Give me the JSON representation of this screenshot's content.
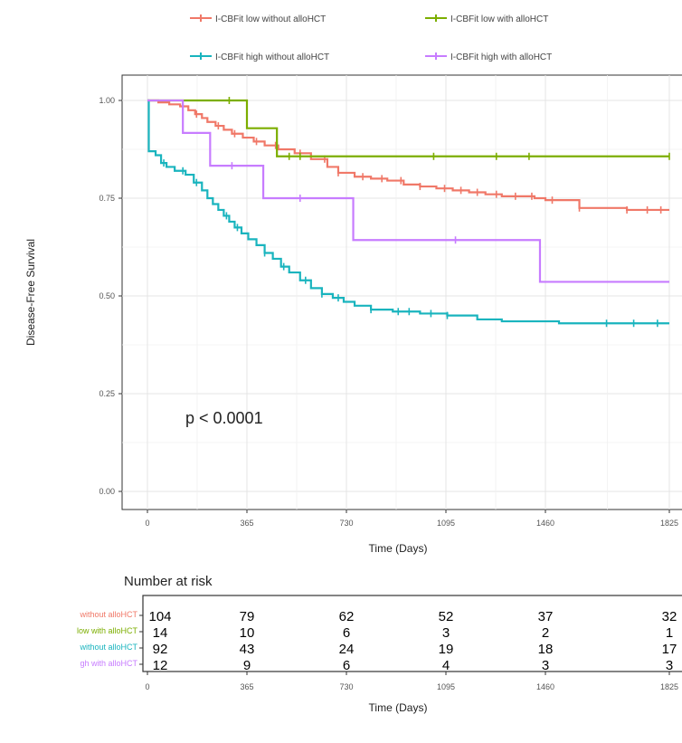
{
  "chart_data": {
    "type": "line",
    "subtype": "kaplan-meier",
    "ylabel": "Disease-Free Survival",
    "xlabel": "Time (Days)",
    "annotation": "p < 0.0001",
    "xlim": [
      0,
      1825
    ],
    "ylim": [
      0,
      1
    ],
    "x_ticks": [
      0,
      365,
      730,
      1095,
      1460,
      1825
    ],
    "x_tick_labels": [
      "0",
      "365",
      "730",
      "1095",
      "1460",
      "1825"
    ],
    "y_ticks": [
      0,
      0.25,
      0.5,
      0.75,
      1.0
    ],
    "y_tick_labels": [
      "0.00",
      "0.25",
      "0.50",
      "0.75",
      "1.00"
    ],
    "grid": true,
    "legend_position": "top",
    "series": [
      {
        "name": "I-CBFit low without alloHCT",
        "color": "#f07868",
        "steps": [
          [
            0,
            1.0
          ],
          [
            40,
            0.995
          ],
          [
            80,
            0.99
          ],
          [
            120,
            0.985
          ],
          [
            150,
            0.975
          ],
          [
            175,
            0.965
          ],
          [
            200,
            0.955
          ],
          [
            220,
            0.945
          ],
          [
            250,
            0.935
          ],
          [
            280,
            0.925
          ],
          [
            310,
            0.915
          ],
          [
            350,
            0.905
          ],
          [
            390,
            0.895
          ],
          [
            430,
            0.885
          ],
          [
            480,
            0.875
          ],
          [
            540,
            0.865
          ],
          [
            600,
            0.85
          ],
          [
            660,
            0.83
          ],
          [
            700,
            0.815
          ],
          [
            760,
            0.805
          ],
          [
            820,
            0.8
          ],
          [
            880,
            0.795
          ],
          [
            940,
            0.785
          ],
          [
            1000,
            0.78
          ],
          [
            1060,
            0.775
          ],
          [
            1120,
            0.77
          ],
          [
            1180,
            0.765
          ],
          [
            1240,
            0.76
          ],
          [
            1300,
            0.755
          ],
          [
            1420,
            0.75
          ],
          [
            1460,
            0.745
          ],
          [
            1560,
            0.725
          ],
          [
            1700,
            0.72
          ],
          [
            1825,
            0.72
          ]
        ],
        "censor_x": [
          130,
          180,
          260,
          320,
          400,
          470,
          560,
          650,
          700,
          790,
          860,
          930,
          1000,
          1090,
          1150,
          1210,
          1280,
          1350,
          1410,
          1480,
          1560,
          1700,
          1760,
          1800
        ]
      },
      {
        "name": "I-CBFit low with alloHCT",
        "color": "#7cae00",
        "steps": [
          [
            0,
            1.0
          ],
          [
            365,
            0.929
          ],
          [
            475,
            0.857
          ],
          [
            1825,
            0.857
          ]
        ],
        "censor_x": [
          300,
          520,
          560,
          1050,
          1280,
          1400,
          1825
        ]
      },
      {
        "name": "I-CBFit high without alloHCT",
        "color": "#19b4be",
        "steps": [
          [
            0,
            1.0
          ],
          [
            5,
            0.87
          ],
          [
            30,
            0.86
          ],
          [
            50,
            0.84
          ],
          [
            70,
            0.83
          ],
          [
            100,
            0.82
          ],
          [
            140,
            0.81
          ],
          [
            170,
            0.79
          ],
          [
            200,
            0.77
          ],
          [
            220,
            0.75
          ],
          [
            240,
            0.735
          ],
          [
            260,
            0.72
          ],
          [
            280,
            0.705
          ],
          [
            300,
            0.69
          ],
          [
            320,
            0.675
          ],
          [
            345,
            0.66
          ],
          [
            370,
            0.645
          ],
          [
            400,
            0.63
          ],
          [
            430,
            0.61
          ],
          [
            460,
            0.595
          ],
          [
            490,
            0.575
          ],
          [
            520,
            0.56
          ],
          [
            560,
            0.54
          ],
          [
            600,
            0.52
          ],
          [
            640,
            0.505
          ],
          [
            680,
            0.495
          ],
          [
            720,
            0.485
          ],
          [
            760,
            0.475
          ],
          [
            820,
            0.465
          ],
          [
            900,
            0.46
          ],
          [
            1000,
            0.455
          ],
          [
            1100,
            0.45
          ],
          [
            1210,
            0.44
          ],
          [
            1300,
            0.435
          ],
          [
            1500,
            0.43
          ],
          [
            1825,
            0.43
          ]
        ],
        "censor_x": [
          60,
          130,
          180,
          290,
          330,
          430,
          500,
          580,
          640,
          700,
          820,
          920,
          960,
          1040,
          1100,
          1640,
          1720,
          1790
        ]
      },
      {
        "name": "I-CBFit high with alloHCT",
        "color": "#c77cff",
        "steps": [
          [
            0,
            1.0
          ],
          [
            130,
            0.917
          ],
          [
            230,
            0.833
          ],
          [
            425,
            0.75
          ],
          [
            755,
            0.643
          ],
          [
            1440,
            0.536
          ],
          [
            1825,
            0.536
          ]
        ],
        "censor_x": [
          310,
          560,
          1130
        ]
      }
    ],
    "risk_table": {
      "title": "Number at risk",
      "xlabel": "Time (Days)",
      "time_points": [
        0,
        365,
        730,
        1095,
        1460,
        1825
      ],
      "rows": [
        {
          "label": "without alloHCT",
          "values": [
            "104",
            "79",
            "62",
            "52",
            "37",
            "32"
          ]
        },
        {
          "label": "low with alloHCT",
          "values": [
            "14",
            "10",
            "6",
            "3",
            "2",
            "1"
          ]
        },
        {
          "label": "without alloHCT",
          "values": [
            "92",
            "43",
            "24",
            "19",
            "18",
            "17"
          ]
        },
        {
          "label": "gh with alloHCT",
          "values": [
            "12",
            "9",
            "6",
            "4",
            "3",
            "3"
          ]
        }
      ]
    }
  }
}
